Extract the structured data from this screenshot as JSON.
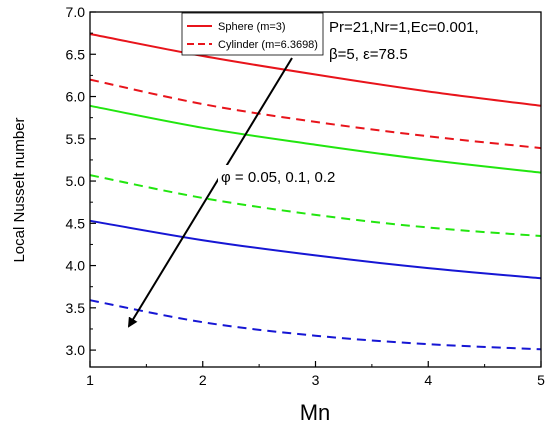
{
  "chart_data": {
    "type": "line",
    "xlabel": "Mn",
    "ylabel": "Local Nusselt number",
    "xlim": [
      1,
      5
    ],
    "ylim": [
      2.8,
      7.0
    ],
    "x_ticks": [
      "1",
      "2",
      "3",
      "4",
      "5"
    ],
    "y_ticks": [
      "3.0",
      "3.5",
      "4.0",
      "4.5",
      "5.0",
      "5.5",
      "6.0",
      "6.5",
      "7.0"
    ],
    "grid": false,
    "legend": {
      "position": "top-center",
      "entries": [
        {
          "label": "Sphere (m=3)",
          "style": "solid",
          "color": "#e8141b"
        },
        {
          "label": "Cylinder (m=6.3698)",
          "style": "dashed",
          "color": "#e8141b"
        }
      ]
    },
    "annotations": {
      "params_line1": "Pr=21,Nr=1,Ec=0.001,",
      "params_line2": "β=5, ε=78.5",
      "arrow_label": "φ = 0.05, 0.1, 0.2"
    },
    "x": [
      1,
      2,
      3,
      4,
      5
    ],
    "series": [
      {
        "color": "#e8141b",
        "style": "solid",
        "values": [
          6.74,
          6.48,
          6.26,
          6.06,
          5.89
        ]
      },
      {
        "color": "#e8141b",
        "style": "dashed",
        "values": [
          6.2,
          5.91,
          5.7,
          5.53,
          5.39
        ]
      },
      {
        "color": "#22e60f",
        "style": "solid",
        "values": [
          5.89,
          5.63,
          5.43,
          5.25,
          5.1
        ]
      },
      {
        "color": "#22e60f",
        "style": "dashed",
        "values": [
          5.07,
          4.8,
          4.6,
          4.45,
          4.35
        ]
      },
      {
        "color": "#1616d4",
        "style": "solid",
        "values": [
          4.53,
          4.3,
          4.12,
          3.97,
          3.85
        ]
      },
      {
        "color": "#1616d4",
        "style": "dashed",
        "values": [
          3.59,
          3.33,
          3.17,
          3.07,
          3.01
        ]
      }
    ]
  }
}
